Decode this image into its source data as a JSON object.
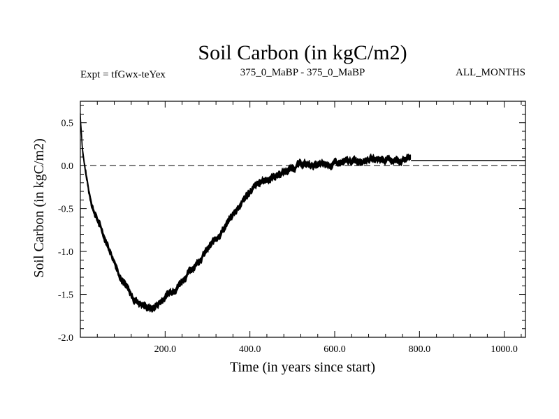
{
  "chart_data": {
    "type": "line",
    "title": "Soil Carbon (in kgC/m2)",
    "subtitle_left": "Expt = tfGwx-teYex",
    "subtitle_center": "375_0_MaBP - 375_0_MaBP",
    "subtitle_right": "ALL_MONTHS",
    "xlabel": "Time (in years since start)",
    "ylabel": "Soil Carbon (in kgC/m2)",
    "xlim": [
      0,
      1050
    ],
    "ylim": [
      -2.0,
      0.75
    ],
    "xticks": [
      200,
      400,
      600,
      800,
      1000
    ],
    "xtick_labels": [
      "200.0",
      "400.0",
      "600.0",
      "800.0",
      "1000.0"
    ],
    "yticks": [
      0.5,
      0.0,
      -0.5,
      -1.0,
      -1.5,
      -2.0
    ],
    "ytick_labels": [
      "0.5",
      "0.0",
      "-0.5",
      "-1.0",
      "-1.5",
      "-2.0"
    ],
    "reference_line": {
      "y": 0.0,
      "style": "dashed"
    },
    "mean_line": {
      "y": 0.06,
      "x_start": 780,
      "x_end": 1050
    },
    "series": [
      {
        "name": "Soil Carbon",
        "band_halfwidth": 0.03,
        "x": [
          0,
          5,
          10,
          20,
          30,
          50,
          75,
          100,
          125,
          150,
          170,
          190,
          210,
          230,
          260,
          300,
          340,
          370,
          400,
          430,
          460,
          490,
          520,
          560,
          600,
          640,
          680,
          720,
          760,
          780
        ],
        "values": [
          0.58,
          0.2,
          0.0,
          -0.3,
          -0.5,
          -0.75,
          -1.05,
          -1.35,
          -1.55,
          -1.63,
          -1.67,
          -1.58,
          -1.48,
          -1.4,
          -1.22,
          -0.98,
          -0.72,
          -0.5,
          -0.3,
          -0.18,
          -0.12,
          -0.05,
          0.02,
          0.0,
          0.02,
          0.05,
          0.08,
          0.07,
          0.06,
          0.1
        ]
      }
    ]
  }
}
